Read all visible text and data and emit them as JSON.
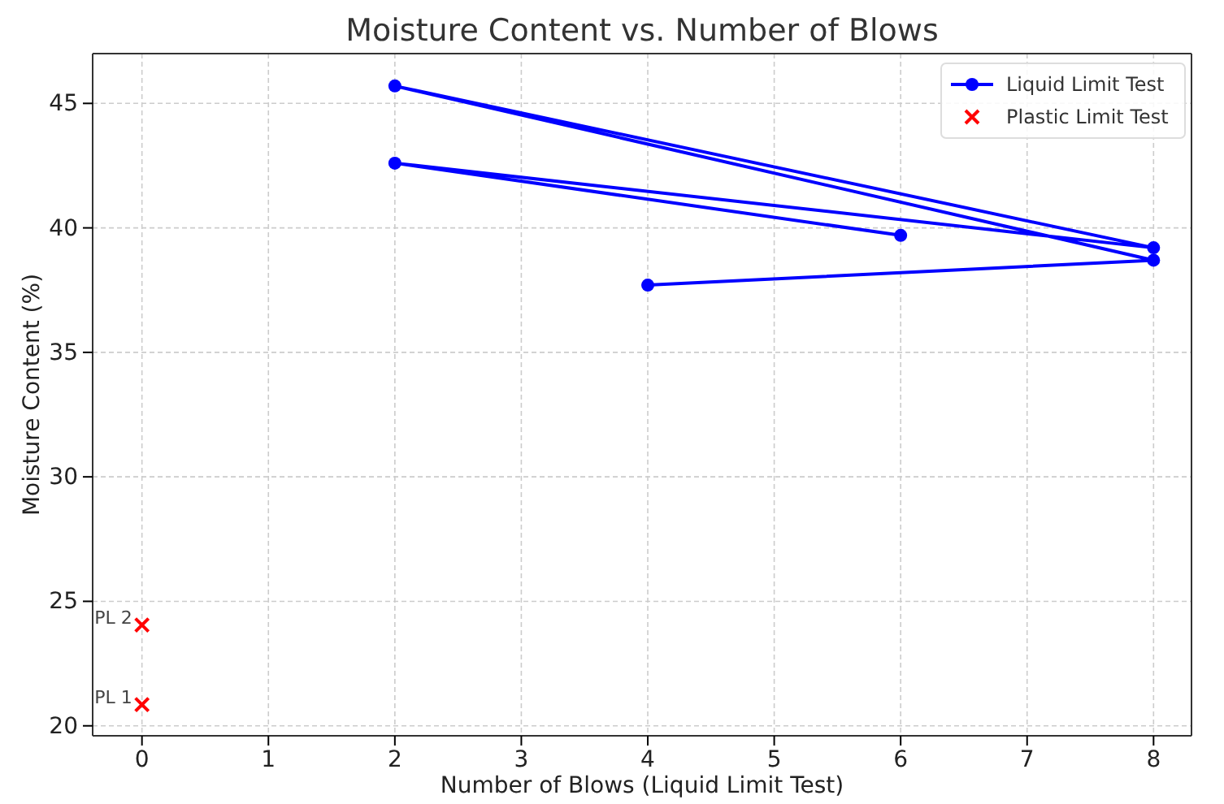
{
  "chart_data": {
    "type": "line",
    "title": "Moisture Content vs. Number of Blows",
    "xlabel": "Number of Blows (Liquid Limit Test)",
    "ylabel": "Moisture Content (%)",
    "series": [
      {
        "name": "Liquid Limit Test",
        "color": "#0000ff",
        "marker": "circle",
        "x": [
          6,
          2,
          8,
          2,
          8,
          4
        ],
        "values": [
          39.7,
          42.6,
          39.2,
          45.7,
          38.7,
          37.7
        ]
      },
      {
        "name": "Plastic Limit Test",
        "type": "scatter",
        "color": "#ff0000",
        "marker": "cross",
        "x": [
          0,
          0
        ],
        "values": [
          20.85,
          24.05
        ]
      }
    ],
    "annotations": [
      {
        "text": "PL 1",
        "x": 0,
        "y": 20.85
      },
      {
        "text": "PL 2",
        "x": 0,
        "y": 24.05
      }
    ],
    "xlim": [
      -0.39,
      8.3
    ],
    "ylim": [
      19.6,
      47
    ],
    "xticks": [
      0,
      1,
      2,
      3,
      4,
      5,
      6,
      7,
      8
    ],
    "yticks": [
      20,
      25,
      30,
      35,
      40,
      45
    ],
    "grid": true,
    "legend": "top right"
  }
}
